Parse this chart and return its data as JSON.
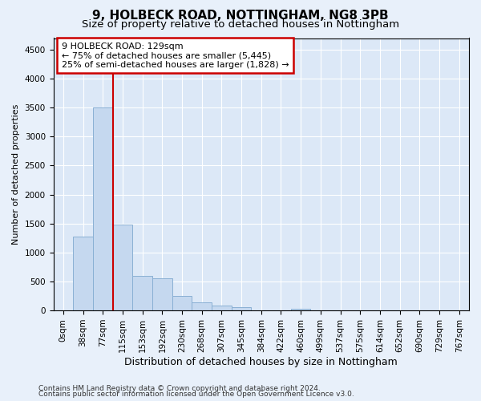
{
  "title1": "9, HOLBECK ROAD, NOTTINGHAM, NG8 3PB",
  "title2": "Size of property relative to detached houses in Nottingham",
  "xlabel": "Distribution of detached houses by size in Nottingham",
  "ylabel": "Number of detached properties",
  "categories": [
    "0sqm",
    "38sqm",
    "77sqm",
    "115sqm",
    "153sqm",
    "192sqm",
    "230sqm",
    "268sqm",
    "307sqm",
    "345sqm",
    "384sqm",
    "422sqm",
    "460sqm",
    "499sqm",
    "537sqm",
    "575sqm",
    "614sqm",
    "652sqm",
    "690sqm",
    "729sqm",
    "767sqm"
  ],
  "values": [
    0,
    1280,
    3500,
    1480,
    590,
    560,
    245,
    145,
    90,
    50,
    0,
    0,
    25,
    0,
    0,
    0,
    0,
    0,
    0,
    0,
    0
  ],
  "bar_color": "#c5d8ef",
  "bar_edgecolor": "#8ab0d4",
  "vline_x_index": 2.5,
  "vline_color": "#cc0000",
  "annotation_line1": "9 HOLBECK ROAD: 129sqm",
  "annotation_line2": "← 75% of detached houses are smaller (5,445)",
  "annotation_line3": "25% of semi-detached houses are larger (1,828) →",
  "annotation_box_color": "#ffffff",
  "annotation_box_edgecolor": "#cc0000",
  "ylim": [
    0,
    4700
  ],
  "yticks": [
    0,
    500,
    1000,
    1500,
    2000,
    2500,
    3000,
    3500,
    4000,
    4500
  ],
  "bg_color": "#e8f0fa",
  "plot_bg_color": "#dce8f7",
  "footer1": "Contains HM Land Registry data © Crown copyright and database right 2024.",
  "footer2": "Contains public sector information licensed under the Open Government Licence v3.0.",
  "title1_fontsize": 11,
  "title2_fontsize": 9.5,
  "xlabel_fontsize": 9,
  "ylabel_fontsize": 8,
  "tick_fontsize": 7.5,
  "annotation_fontsize": 8,
  "footer_fontsize": 6.5
}
